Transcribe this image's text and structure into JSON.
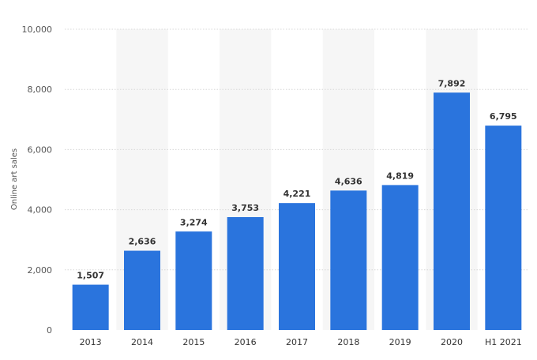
{
  "chart_data": {
    "type": "bar",
    "categories": [
      "2013",
      "2014",
      "2015",
      "2016",
      "2017",
      "2018",
      "2019",
      "2020",
      "H1 2021"
    ],
    "values": [
      1507,
      2636,
      3274,
      3753,
      4221,
      4636,
      4819,
      7892,
      6795
    ],
    "value_labels": [
      "1,507",
      "2,636",
      "3,274",
      "3,753",
      "4,221",
      "4,636",
      "4,819",
      "7,892",
      "6,795"
    ],
    "title": "",
    "xlabel": "",
    "ylabel": "Online art sales",
    "ylim": [
      0,
      10000
    ],
    "yticks": [
      0,
      2000,
      4000,
      6000,
      8000,
      10000
    ],
    "ytick_labels": [
      "0",
      "2,000",
      "4,000",
      "6,000",
      "8,000",
      "10,000"
    ],
    "grid": true,
    "bar_color": "#2a74dd",
    "band_color": "#f6f6f6",
    "grid_color": "#d8d8d8"
  }
}
